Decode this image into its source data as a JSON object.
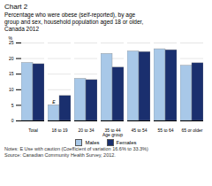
{
  "chart_data": {
    "type": "bar",
    "title": "Chart 2",
    "subtitle": "Percentage who were obese (self-reported), by age\ngroup and sex, household population aged 18 or older,\nCanada 2012",
    "categories": [
      "Total",
      "18 to 19",
      "20 to 34",
      "35 to 44",
      "45 to 54",
      "55 to 64",
      "65 or older"
    ],
    "series": [
      {
        "name": "Males",
        "color": "#a8c8e8",
        "values": [
          18.6,
          5.0,
          13.5,
          21.5,
          22.3,
          23.0,
          17.7
        ]
      },
      {
        "name": "Females",
        "color": "#1a2f6e",
        "values": [
          18.2,
          8.0,
          13.1,
          17.1,
          22.1,
          22.7,
          18.5
        ]
      }
    ],
    "xlabel": "Age group",
    "ylabel": "%",
    "ylim": [
      0,
      25
    ],
    "yticks": [
      0,
      5,
      10,
      15,
      20,
      25
    ],
    "grid": true,
    "legend": "bottom",
    "annotations": [
      {
        "text": "E",
        "category": "18 to 19",
        "series": "Males"
      }
    ],
    "note": "Notes: E Use with caution (Coefficient of variation 16.6% to 33.3%)",
    "source": "Source: Canadian Community Health Survey, 2012."
  }
}
